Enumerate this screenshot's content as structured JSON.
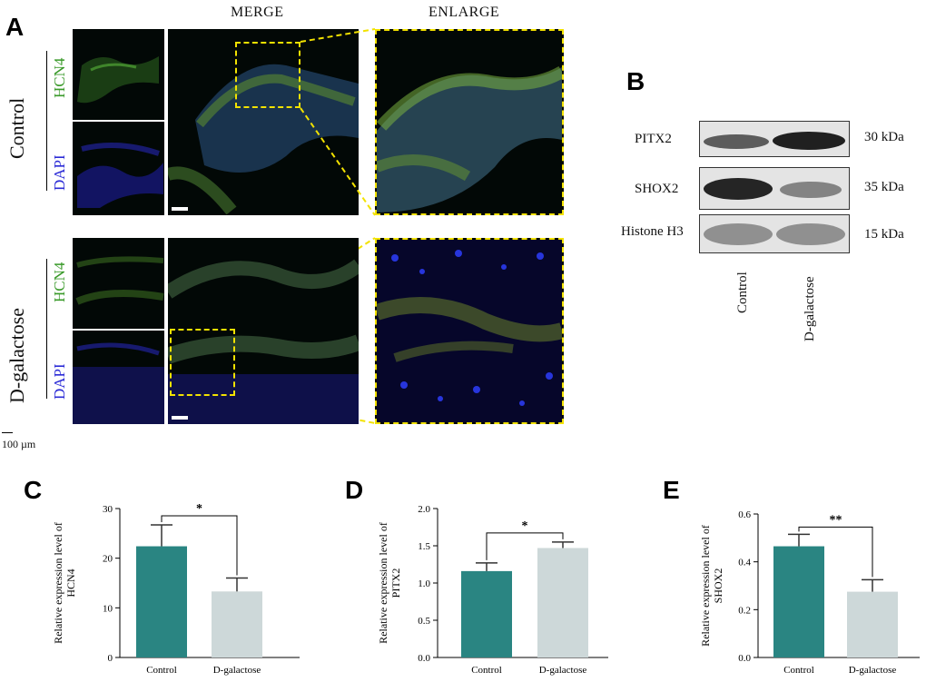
{
  "panel_letters": {
    "a": "A",
    "b": "B",
    "c": "C",
    "d": "D",
    "e": "E"
  },
  "panel_a": {
    "col_merge": "MERGE",
    "col_enlarge": "ENLARGE",
    "row_control": "Control",
    "row_dgal": "D-galactose",
    "stain_hcn4": "HCN4",
    "stain_dapi": "DAPI",
    "scale_label": "100 µm",
    "colors": {
      "hcn4": "#3a9a2a",
      "dapi": "#2b2bd6",
      "zoom_box": "#f2e200"
    }
  },
  "panel_b": {
    "bands": [
      {
        "protein": "PITX2",
        "kda": "30 kDa"
      },
      {
        "protein": "SHOX2",
        "kda": "35 kDa"
      },
      {
        "protein": "Histone H3",
        "kda": "15 kDa"
      }
    ],
    "lanes": [
      "Control",
      "D-galactose"
    ]
  },
  "chart_data": [
    {
      "type": "bar",
      "panel": "C",
      "categories": [
        "Control",
        "D-galactose"
      ],
      "values": [
        22.4,
        13.3
      ],
      "errors": [
        4.3,
        2.7
      ],
      "ylabel": "Relative expression level of HCN4",
      "ylim": [
        0,
        30
      ],
      "yticks": [
        "0",
        "10",
        "20",
        "30"
      ],
      "significance": "*",
      "colors": [
        "#2a8582",
        "#cdd8d9"
      ]
    },
    {
      "type": "bar",
      "panel": "D",
      "categories": [
        "Control",
        "D-galactose"
      ],
      "values": [
        1.16,
        1.47
      ],
      "errors": [
        0.11,
        0.08
      ],
      "ylabel": "Relative expression level of PITX2",
      "ylim": [
        0,
        2.0
      ],
      "yticks": [
        "0.0",
        "0.5",
        "1.0",
        "1.5",
        "2.0"
      ],
      "significance": "*",
      "colors": [
        "#2a8582",
        "#cdd8d9"
      ]
    },
    {
      "type": "bar",
      "panel": "E",
      "categories": [
        "Control",
        "D-galactose"
      ],
      "values": [
        0.465,
        0.275
      ],
      "errors": [
        0.05,
        0.05
      ],
      "ylabel": "Relative expression level of SHOX2",
      "ylim": [
        0,
        0.6
      ],
      "yticks": [
        "0.0",
        "0.2",
        "0.4",
        "0.6"
      ],
      "significance": "**",
      "colors": [
        "#2a8582",
        "#cdd8d9"
      ]
    }
  ]
}
